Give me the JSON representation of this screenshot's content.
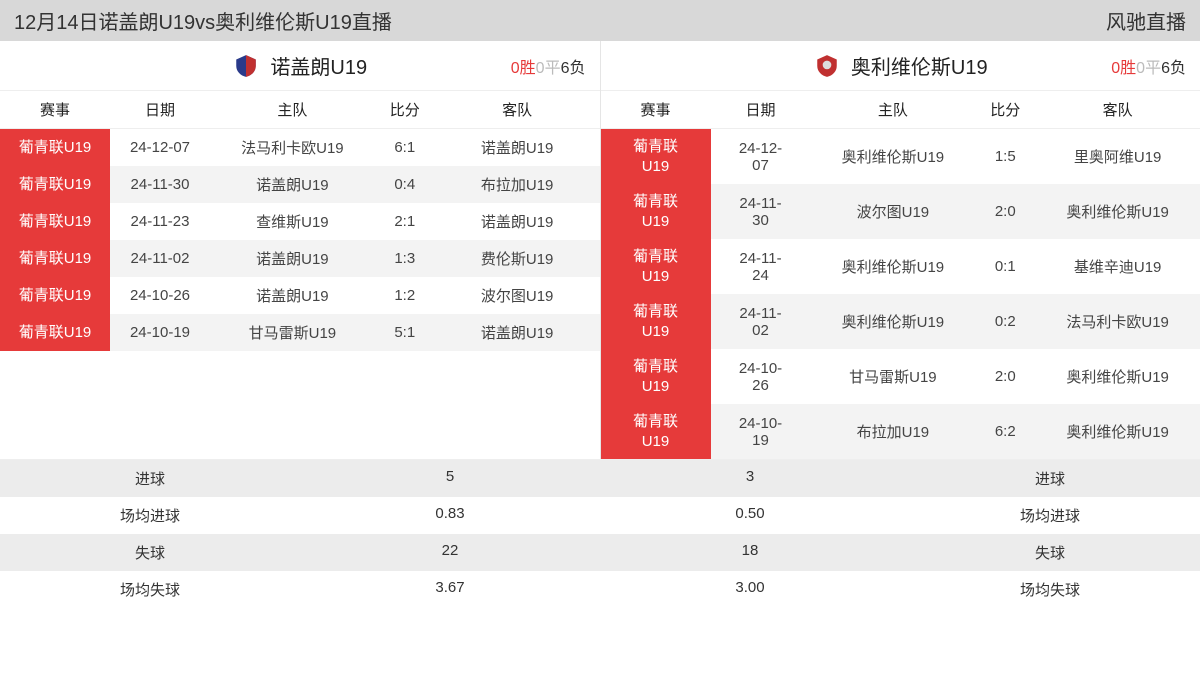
{
  "title_bar": {
    "left": "12月14日诺盖朗U19vs奥利维伦斯U19直播",
    "right": "风驰直播"
  },
  "columns": {
    "league": "赛事",
    "date": "日期",
    "home": "主队",
    "score": "比分",
    "away": "客队"
  },
  "wdl_labels": {
    "win": "胜",
    "draw": "平",
    "loss": "负"
  },
  "left": {
    "team_name": "诺盖朗U19",
    "logo_colors": {
      "primary": "#2a3a8a",
      "secondary": "#c03030"
    },
    "wdl": {
      "wins": "0",
      "draws": "0",
      "losses": "6"
    },
    "matches": [
      {
        "league": "葡青联U19",
        "date": "24-12-07",
        "home": "法马利卡欧U19",
        "score": "6:1",
        "away": "诺盖朗U19"
      },
      {
        "league": "葡青联U19",
        "date": "24-11-30",
        "home": "诺盖朗U19",
        "score": "0:4",
        "away": "布拉加U19"
      },
      {
        "league": "葡青联U19",
        "date": "24-11-23",
        "home": "查维斯U19",
        "score": "2:1",
        "away": "诺盖朗U19"
      },
      {
        "league": "葡青联U19",
        "date": "24-11-02",
        "home": "诺盖朗U19",
        "score": "1:3",
        "away": "费伦斯U19"
      },
      {
        "league": "葡青联U19",
        "date": "24-10-26",
        "home": "诺盖朗U19",
        "score": "1:2",
        "away": "波尔图U19"
      },
      {
        "league": "葡青联U19",
        "date": "24-10-19",
        "home": "甘马雷斯U19",
        "score": "5:1",
        "away": "诺盖朗U19"
      }
    ]
  },
  "right": {
    "team_name": "奥利维伦斯U19",
    "logo_colors": {
      "primary": "#c03030",
      "secondary": "#dddddd"
    },
    "wdl": {
      "wins": "0",
      "draws": "0",
      "losses": "6"
    },
    "matches": [
      {
        "league": "葡青联U19",
        "date": "24-12-07",
        "home": "奥利维伦斯U19",
        "score": "1:5",
        "away": "里奥阿维U19"
      },
      {
        "league": "葡青联U19",
        "date": "24-11-30",
        "home": "波尔图U19",
        "score": "2:0",
        "away": "奥利维伦斯U19"
      },
      {
        "league": "葡青联U19",
        "date": "24-11-24",
        "home": "奥利维伦斯U19",
        "score": "0:1",
        "away": "基维辛迪U19"
      },
      {
        "league": "葡青联U19",
        "date": "24-11-02",
        "home": "奥利维伦斯U19",
        "score": "0:2",
        "away": "法马利卡欧U19"
      },
      {
        "league": "葡青联U19",
        "date": "24-10-26",
        "home": "甘马雷斯U19",
        "score": "2:0",
        "away": "奥利维伦斯U19"
      },
      {
        "league": "葡青联U19",
        "date": "24-10-19",
        "home": "布拉加U19",
        "score": "6:2",
        "away": "奥利维伦斯U19"
      }
    ]
  },
  "stats": {
    "labels": {
      "goals": "进球",
      "avg_goals": "场均进球",
      "conceded": "失球",
      "avg_conceded": "场均失球"
    },
    "left": {
      "goals": "5",
      "avg_goals": "0.83",
      "conceded": "22",
      "avg_conceded": "3.67"
    },
    "right": {
      "goals": "3",
      "avg_goals": "0.50",
      "conceded": "18",
      "avg_conceded": "3.00"
    }
  },
  "colors": {
    "league_bg": "#e63a3a",
    "title_bg": "#d8d8d8",
    "row_alt": "#f3f3f3",
    "stats_alt": "#ececec",
    "text": "#333333",
    "win": "#e63a3a",
    "draw": "#bbbbbb"
  }
}
